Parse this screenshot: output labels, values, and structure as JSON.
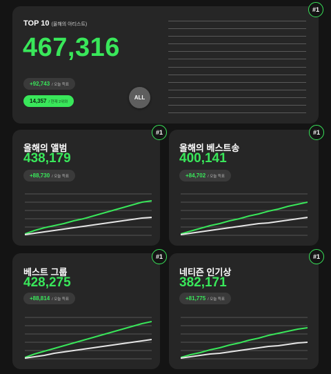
{
  "colors": {
    "accent": "#39e75a",
    "secondary_line": "#e6e6e6",
    "card_bg": "#262626",
    "page_bg": "#141414"
  },
  "top": {
    "title": "TOP 10",
    "subtitle": "(올해의 아티스트)",
    "total": "467,316",
    "today_value": "+92,743",
    "today_unit": "/ 오늘 득표",
    "rank_value": "14,357",
    "rank_unit": "/ 현재 2위와",
    "all_button": "ALL",
    "badge": "#1"
  },
  "cards": [
    {
      "title": "올해의 앨범",
      "total": "438,179",
      "today_value": "+88,730",
      "today_unit": "/ 오늘 득표",
      "badge": "#1",
      "chart_data": {
        "type": "line",
        "series": [
          {
            "values": [
              2,
              7,
              11,
              14,
              17,
              21,
              24,
              28,
              32,
              36,
              40,
              44,
              48,
              50
            ]
          },
          {
            "values": [
              1,
              3,
              5,
              7,
              9,
              11,
              13,
              15,
              17,
              19,
              21,
              23,
              25,
              26
            ]
          }
        ],
        "ylim": [
          0,
          60
        ]
      }
    },
    {
      "title": "올해의 베스트송",
      "total": "400,141",
      "today_value": "+84,702",
      "today_unit": "/ 오늘 득표",
      "badge": "#1",
      "chart_data": {
        "type": "line",
        "series": [
          {
            "values": [
              2,
              6,
              10,
              14,
              17,
              21,
              24,
              28,
              31,
              35,
              38,
              42,
              45,
              48
            ]
          },
          {
            "values": [
              1,
              3,
              5,
              7,
              9,
              11,
              13,
              15,
              17,
              18,
              20,
              22,
              24,
              26
            ]
          }
        ],
        "ylim": [
          0,
          60
        ]
      }
    },
    {
      "title": "베스트 그룹",
      "total": "428,275",
      "today_value": "+88,814",
      "today_unit": "/ 오늘 득표",
      "badge": "#1",
      "chart_data": {
        "type": "line",
        "series": [
          {
            "values": [
              2,
              7,
              11,
              15,
              19,
              23,
              27,
              31,
              35,
              39,
              43,
              47,
              51,
              54
            ]
          },
          {
            "values": [
              1,
              3,
              5,
              8,
              10,
              12,
              14,
              16,
              18,
              20,
              22,
              24,
              26,
              28
            ]
          }
        ],
        "ylim": [
          0,
          60
        ]
      }
    },
    {
      "title": "네티즌 인기상",
      "total": "382,171",
      "today_value": "+81,775",
      "today_unit": "/ 오늘 득표",
      "badge": "#1",
      "chart_data": {
        "type": "line",
        "series": [
          {
            "values": [
              2,
              6,
              9,
              13,
              16,
              20,
              23,
              27,
              30,
              34,
              37,
              40,
              43,
              45
            ]
          },
          {
            "values": [
              1,
              3,
              5,
              7,
              8,
              10,
              12,
              14,
              16,
              18,
              19,
              21,
              23,
              24
            ]
          }
        ],
        "ylim": [
          0,
          60
        ]
      }
    }
  ]
}
